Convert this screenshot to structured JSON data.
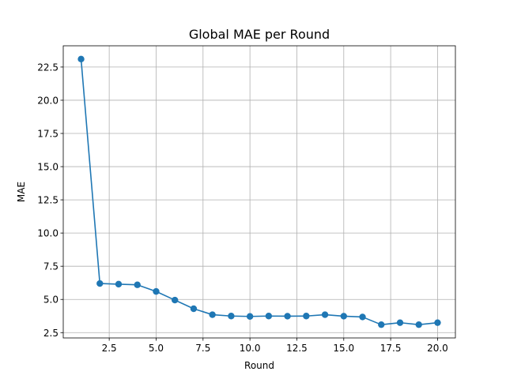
{
  "chart_data": {
    "type": "line",
    "title": "Global MAE per Round",
    "xlabel": "Round",
    "ylabel": "MAE",
    "x": [
      1,
      2,
      3,
      4,
      5,
      6,
      7,
      8,
      9,
      10,
      11,
      12,
      13,
      14,
      15,
      16,
      17,
      18,
      19,
      20
    ],
    "series": [
      {
        "values": [
          23.1,
          6.2,
          6.15,
          6.1,
          5.6,
          4.95,
          4.3,
          3.85,
          3.75,
          3.72,
          3.75,
          3.74,
          3.75,
          3.85,
          3.74,
          3.68,
          3.1,
          3.25,
          3.1,
          3.25
        ],
        "color": "#1f77b4"
      }
    ],
    "xlim": [
      0.05,
      20.95
    ],
    "ylim": [
      2.1,
      24.1
    ],
    "xticks": [
      2.5,
      5.0,
      7.5,
      10.0,
      12.5,
      15.0,
      17.5,
      20.0
    ],
    "xtick_labels": [
      "2.5",
      "5.0",
      "7.5",
      "10.0",
      "12.5",
      "15.0",
      "17.5",
      "20.0"
    ],
    "yticks": [
      2.5,
      5.0,
      7.5,
      10.0,
      12.5,
      15.0,
      17.5,
      20.0,
      22.5
    ],
    "ytick_labels": [
      "2.5",
      "5.0",
      "7.5",
      "10.0",
      "12.5",
      "15.0",
      "17.5",
      "20.0",
      "22.5"
    ],
    "grid": true,
    "marker": "circle"
  }
}
